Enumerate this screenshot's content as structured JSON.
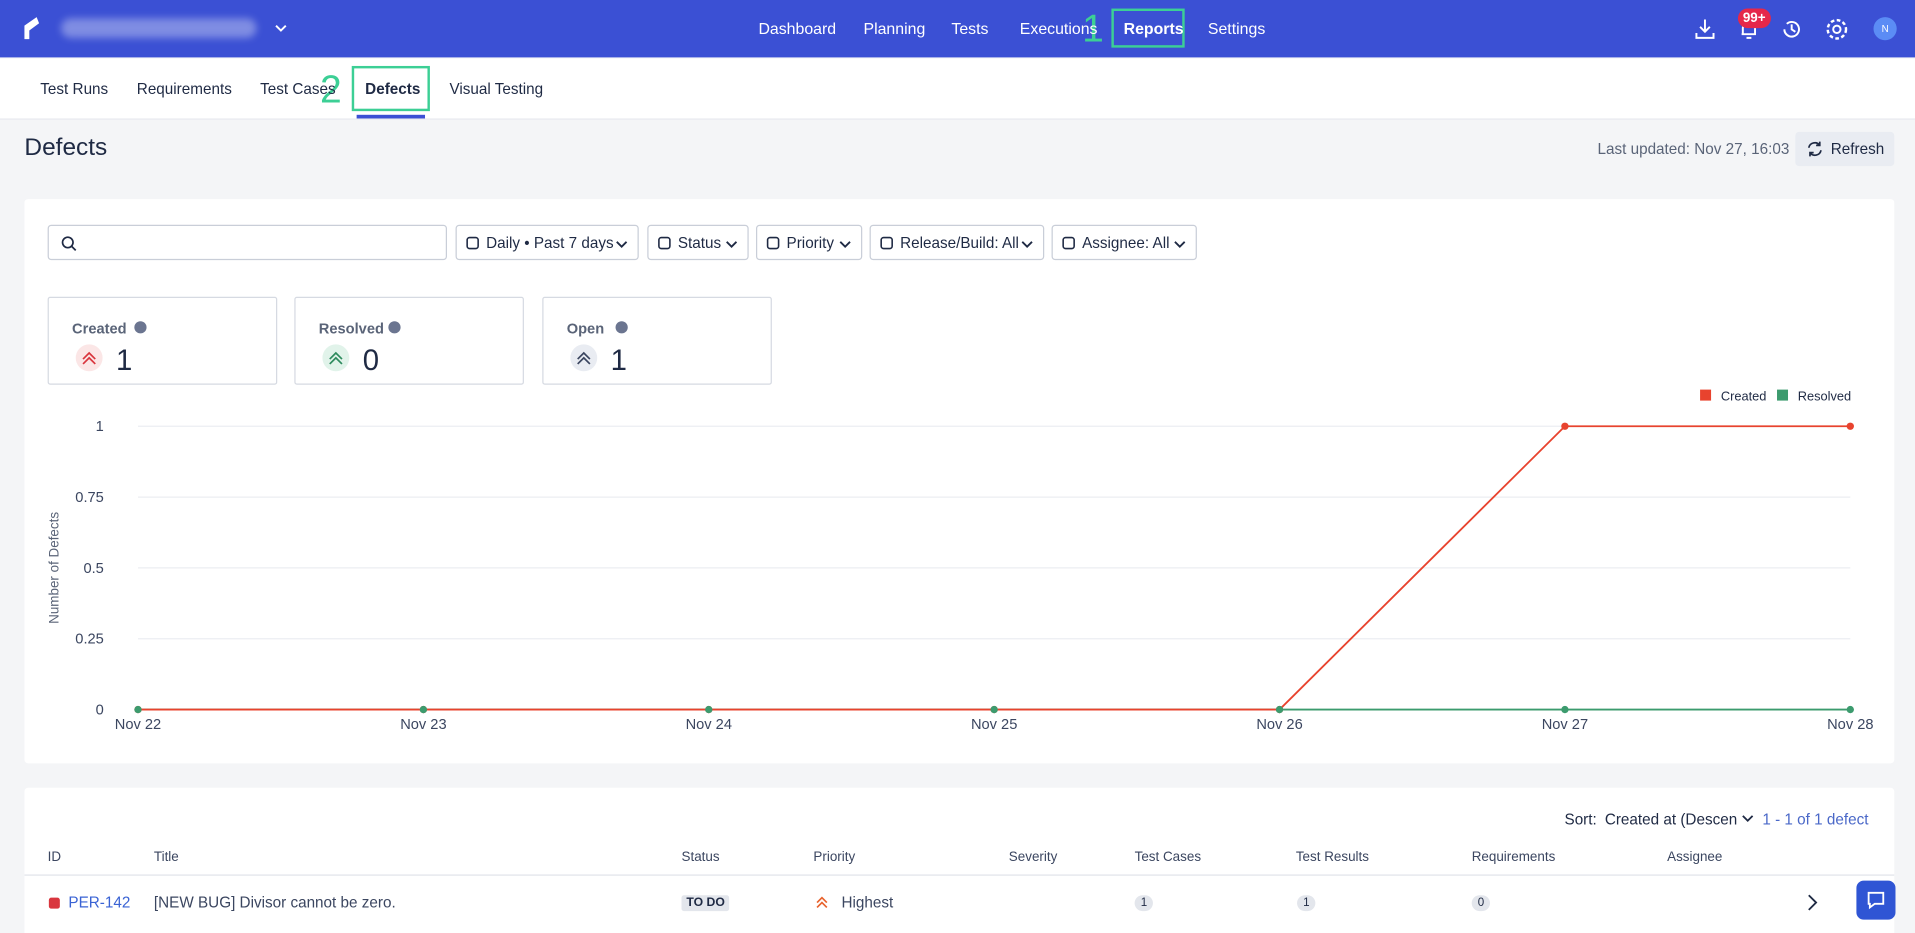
{
  "nav": {
    "links": [
      "Dashboard",
      "Planning",
      "Tests",
      "Executions",
      "Reports",
      "Settings"
    ],
    "notification_badge": "99+",
    "avatar": "N"
  },
  "annotations": [
    "1",
    "2"
  ],
  "tabs": [
    "Test Runs",
    "Requirements",
    "Test Cases",
    "Defects",
    "Visual Testing"
  ],
  "header": {
    "title": "Defects",
    "last_updated": "Last updated: Nov 27, 16:03",
    "refresh": "Refresh"
  },
  "filters": [
    "Daily • Past 7 days",
    "Status",
    "Priority",
    "Release/Build: All",
    "Assignee: All"
  ],
  "stats": [
    {
      "label": "Created",
      "value": 1
    },
    {
      "label": "Resolved",
      "value": 0
    },
    {
      "label": "Open",
      "value": 1
    }
  ],
  "chart_data": {
    "type": "line",
    "y_label": "Number of Defects",
    "categories": [
      "Nov 22",
      "Nov 23",
      "Nov 24",
      "Nov 25",
      "Nov 26",
      "Nov 27",
      "Nov 28"
    ],
    "series": [
      {
        "name": "Created",
        "color": "#e8432e",
        "values": [
          0,
          0,
          0,
          0,
          0,
          1,
          1
        ]
      },
      {
        "name": "Resolved",
        "color": "#3c9b6e",
        "values": [
          0,
          0,
          0,
          0,
          0,
          0,
          0
        ]
      }
    ],
    "ylim": [
      0,
      1
    ],
    "yticks": [
      0,
      0.25,
      0.5,
      0.75,
      1
    ],
    "grid": true,
    "legend": "top-right"
  },
  "table": {
    "sort_label": "Sort:",
    "sort_value": "Created at (Descen",
    "pagination": "1 - 1 of 1 defect",
    "columns": [
      "ID",
      "Title",
      "Status",
      "Priority",
      "Severity",
      "Test Cases",
      "Test Results",
      "Requirements",
      "Assignee"
    ],
    "rows": [
      {
        "id": "PER-142",
        "title": "[NEW BUG] Divisor cannot be zero.",
        "status": "TO DO",
        "priority": "Highest",
        "test_cases": 1,
        "test_results": 1,
        "requirements": 0
      }
    ]
  }
}
